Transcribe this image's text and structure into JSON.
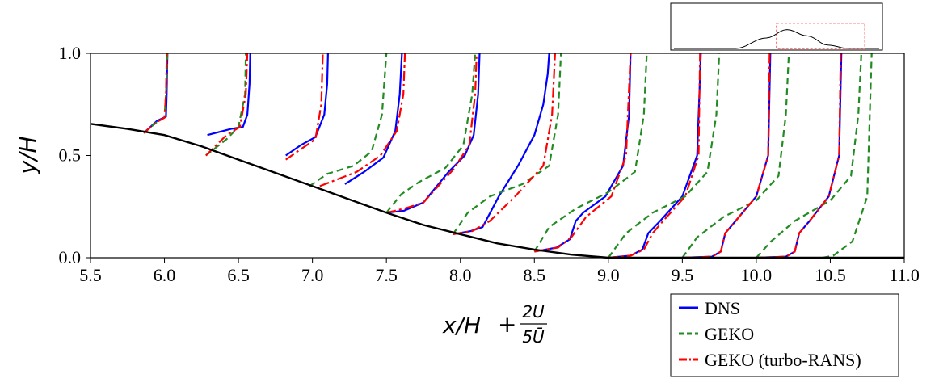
{
  "chart_data": {
    "type": "line",
    "xlabel": {
      "main": "x/H",
      "frac_num": "2U",
      "frac_den": "5Ū"
    },
    "ylabel": "y/H",
    "xlim": [
      5.5,
      11.0
    ],
    "ylim": [
      0.0,
      1.0
    ],
    "xticks": [
      "5.5",
      "6.0",
      "6.5",
      "7.0",
      "7.5",
      "8.0",
      "8.5",
      "9.0",
      "9.5",
      "10.0",
      "10.5",
      "11.0"
    ],
    "yticks": [
      "0.0",
      "0.5",
      "1.0"
    ],
    "grid": false,
    "legend_position": "bottom-right, outside plot",
    "hill_profile": {
      "x": [
        5.5,
        5.75,
        6.0,
        6.25,
        6.5,
        6.75,
        7.0,
        7.25,
        7.5,
        7.75,
        8.0,
        8.25,
        8.5,
        8.75,
        9.0,
        9.25,
        9.5,
        10.0,
        11.0
      ],
      "y": [
        0.655,
        0.63,
        0.6,
        0.545,
        0.48,
        0.415,
        0.35,
        0.285,
        0.22,
        0.16,
        0.115,
        0.07,
        0.04,
        0.015,
        0.0,
        0.0,
        0.0,
        0.0,
        0.0
      ]
    },
    "stations": [
      6.0,
      6.5,
      7.0,
      7.5,
      8.0,
      8.5,
      9.0,
      9.5,
      10.0,
      10.5
    ],
    "series": [
      {
        "name": "DNS",
        "color": "#0000ff",
        "dash": "solid",
        "profiles": [
          {
            "x": [
              5.86,
              5.95,
              6.01,
              6.015,
              6.02
            ],
            "y": [
              0.61,
              0.67,
              0.69,
              0.8,
              1.0
            ]
          },
          {
            "x": [
              6.29,
              6.45,
              6.53,
              6.56,
              6.575,
              6.58
            ],
            "y": [
              0.6,
              0.63,
              0.64,
              0.7,
              0.85,
              1.0
            ]
          },
          {
            "x": [
              6.82,
              6.92,
              7.02,
              7.08,
              7.1,
              7.105
            ],
            "y": [
              0.5,
              0.55,
              0.59,
              0.7,
              0.85,
              1.0
            ]
          },
          {
            "x": [
              7.22,
              7.35,
              7.48,
              7.56,
              7.59,
              7.605
            ],
            "y": [
              0.36,
              0.42,
              0.49,
              0.62,
              0.8,
              1.0
            ]
          },
          {
            "x": [
              7.5,
              7.62,
              7.75,
              7.92,
              8.03,
              8.09,
              8.12,
              8.13
            ],
            "y": [
              0.22,
              0.23,
              0.27,
              0.42,
              0.5,
              0.6,
              0.8,
              1.0
            ]
          },
          {
            "x": [
              7.95,
              8.07,
              8.15,
              8.26,
              8.39,
              8.5,
              8.56,
              8.59,
              8.6
            ],
            "y": [
              0.115,
              0.13,
              0.15,
              0.3,
              0.45,
              0.6,
              0.75,
              0.9,
              1.0
            ]
          },
          {
            "x": [
              8.5,
              8.65,
              8.74,
              8.78,
              8.83,
              8.98,
              9.1,
              9.14,
              9.15
            ],
            "y": [
              0.03,
              0.05,
              0.09,
              0.18,
              0.22,
              0.3,
              0.45,
              0.7,
              1.0
            ]
          },
          {
            "x": [
              9.0,
              9.15,
              9.23,
              9.27,
              9.35,
              9.5,
              9.6,
              9.625
            ],
            "y": [
              0.0,
              0.01,
              0.04,
              0.12,
              0.18,
              0.3,
              0.5,
              1.0
            ]
          },
          {
            "x": [
              9.5,
              9.7,
              9.76,
              9.79,
              9.86,
              10.0,
              10.08,
              10.095
            ],
            "y": [
              0.0,
              0.005,
              0.03,
              0.12,
              0.18,
              0.3,
              0.5,
              1.0
            ]
          },
          {
            "x": [
              10.0,
              10.2,
              10.26,
              10.29,
              10.36,
              10.49,
              10.56,
              10.575
            ],
            "y": [
              0.0,
              0.005,
              0.03,
              0.12,
              0.18,
              0.3,
              0.5,
              1.0
            ]
          }
        ]
      },
      {
        "name": "GEKO",
        "color": "#228b22",
        "dash": "8,5",
        "profiles": [
          {
            "x": [
              5.86,
              5.95,
              6.0,
              6.01,
              6.02
            ],
            "y": [
              0.61,
              0.665,
              0.685,
              0.8,
              1.0
            ]
          },
          {
            "x": [
              6.28,
              6.42,
              6.5,
              6.545,
              6.55
            ],
            "y": [
              0.5,
              0.58,
              0.64,
              0.8,
              1.0
            ]
          },
          {
            "x": [
              6.98,
              7.1,
              7.28,
              7.4,
              7.47,
              7.5
            ],
            "y": [
              0.35,
              0.41,
              0.45,
              0.52,
              0.7,
              1.0
            ]
          },
          {
            "x": [
              7.5,
              7.6,
              7.72,
              7.9,
              8.02,
              8.08,
              8.1
            ],
            "y": [
              0.22,
              0.31,
              0.37,
              0.44,
              0.55,
              0.8,
              1.0
            ]
          },
          {
            "x": [
              7.95,
              8.05,
              8.2,
              8.42,
              8.6,
              8.66,
              8.68
            ],
            "y": [
              0.115,
              0.22,
              0.3,
              0.36,
              0.45,
              0.7,
              1.0
            ]
          },
          {
            "x": [
              8.5,
              8.6,
              8.78,
              9.0,
              9.18,
              9.24,
              9.26
            ],
            "y": [
              0.03,
              0.15,
              0.24,
              0.32,
              0.42,
              0.7,
              1.0
            ]
          },
          {
            "x": [
              9.0,
              9.12,
              9.3,
              9.52,
              9.67,
              9.73,
              9.75
            ],
            "y": [
              0.0,
              0.12,
              0.22,
              0.3,
              0.42,
              0.7,
              1.0
            ]
          },
          {
            "x": [
              9.5,
              9.6,
              9.78,
              10.0,
              10.15,
              10.2,
              10.22
            ],
            "y": [
              0.0,
              0.1,
              0.2,
              0.28,
              0.4,
              0.7,
              1.0
            ]
          },
          {
            "x": [
              10.0,
              10.1,
              10.26,
              10.5,
              10.64,
              10.69,
              10.71
            ],
            "y": [
              0.0,
              0.08,
              0.18,
              0.28,
              0.4,
              0.7,
              1.0
            ]
          },
          {
            "x": [
              10.45,
              10.52,
              10.65,
              10.75,
              10.78
            ],
            "y": [
              0.0,
              0.01,
              0.08,
              0.3,
              1.0
            ]
          }
        ]
      },
      {
        "name": "GEKO (turbo-RANS)",
        "color": "#ff0000",
        "dash": "12,4,3,4",
        "profiles": [
          {
            "x": [
              5.86,
              5.95,
              6.0,
              6.01,
              6.015
            ],
            "y": [
              0.61,
              0.665,
              0.685,
              0.8,
              1.0
            ]
          },
          {
            "x": [
              6.28,
              6.42,
              6.51,
              6.55,
              6.56
            ],
            "y": [
              0.5,
              0.6,
              0.64,
              0.8,
              1.0
            ]
          },
          {
            "x": [
              6.82,
              6.92,
              7.02,
              7.06,
              7.07
            ],
            "y": [
              0.48,
              0.53,
              0.58,
              0.75,
              1.0
            ]
          },
          {
            "x": [
              7.05,
              7.3,
              7.46,
              7.57,
              7.615,
              7.625
            ],
            "y": [
              0.35,
              0.42,
              0.5,
              0.62,
              0.8,
              1.0
            ]
          },
          {
            "x": [
              7.5,
              7.62,
              7.75,
              7.95,
              8.06,
              8.1,
              8.11
            ],
            "y": [
              0.22,
              0.24,
              0.27,
              0.43,
              0.55,
              0.8,
              1.0
            ]
          },
          {
            "x": [
              7.95,
              8.08,
              8.2,
              8.37,
              8.56,
              8.62,
              8.64
            ],
            "y": [
              0.115,
              0.13,
              0.18,
              0.3,
              0.45,
              0.7,
              1.0
            ]
          },
          {
            "x": [
              8.5,
              8.66,
              8.75,
              8.85,
              9.02,
              9.12,
              9.15
            ],
            "y": [
              0.03,
              0.05,
              0.1,
              0.2,
              0.3,
              0.5,
              1.0
            ]
          },
          {
            "x": [
              9.0,
              9.15,
              9.24,
              9.3,
              9.37,
              9.52,
              9.61,
              9.62
            ],
            "y": [
              0.0,
              0.01,
              0.04,
              0.12,
              0.18,
              0.3,
              0.5,
              1.0
            ]
          },
          {
            "x": [
              9.5,
              9.7,
              9.76,
              9.79,
              9.86,
              10.0,
              10.08,
              10.09
            ],
            "y": [
              0.0,
              0.005,
              0.03,
              0.12,
              0.18,
              0.3,
              0.5,
              1.0
            ]
          },
          {
            "x": [
              10.0,
              10.2,
              10.26,
              10.29,
              10.36,
              10.49,
              10.56,
              10.57
            ],
            "y": [
              0.0,
              0.005,
              0.03,
              0.12,
              0.18,
              0.3,
              0.5,
              1.0
            ]
          }
        ]
      }
    ],
    "inset": {
      "hill_x": [
        0.0,
        0.15,
        0.3,
        0.45,
        0.55,
        0.65,
        0.75,
        0.85,
        1.0
      ],
      "hill_y": [
        0.0,
        0.0,
        0.0,
        0.25,
        0.45,
        0.3,
        0.08,
        0.0,
        0.0
      ],
      "highlight_box": {
        "x0": 0.5,
        "x1": 0.93,
        "y0": 0.0,
        "y1": 0.6,
        "color": "#ff0000"
      }
    }
  }
}
